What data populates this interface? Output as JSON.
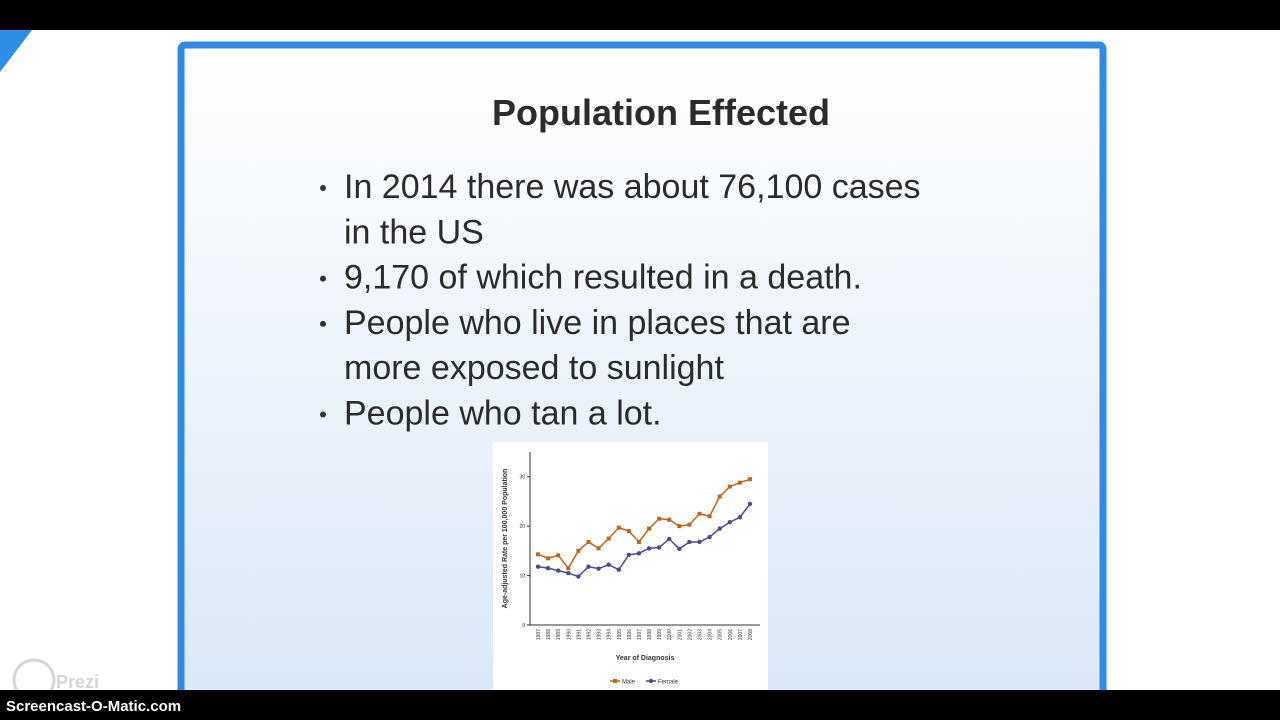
{
  "slide": {
    "title": "Population Effected",
    "bullets": [
      [
        "In 2014 there was about 76,100 cases",
        "in the US"
      ],
      [
        "9,170 of which resulted in a death."
      ],
      [
        "People who live in places that are",
        "more exposed to sunlight"
      ],
      [
        "People who tan a lot."
      ]
    ]
  },
  "chart_data": {
    "type": "line",
    "ylabel": "Age-adjusted Rate per 100,000 Population",
    "xlabel": "Year of Diagnosis",
    "categories": [
      "1987",
      "1988",
      "1989",
      "1990",
      "1991",
      "1992",
      "1993",
      "1994",
      "1995",
      "1996",
      "1997",
      "1998",
      "1999",
      "2000",
      "2001",
      "2002",
      "2003",
      "2004",
      "2005",
      "2006",
      "2007",
      "2008"
    ],
    "series": [
      {
        "name": "Male",
        "color": "#c0661a",
        "marker": "square",
        "values": [
          14.3,
          13.5,
          14.1,
          11.5,
          15,
          16.8,
          15.5,
          17.5,
          19.7,
          19,
          16.8,
          19.5,
          21.5,
          21.3,
          20,
          20.3,
          22.5,
          22,
          26,
          28,
          28.8,
          29.5
        ]
      },
      {
        "name": "Female",
        "color": "#4a4a9a",
        "marker": "circle",
        "values": [
          11.8,
          11.5,
          11,
          10.5,
          9.8,
          11.8,
          11.4,
          12.2,
          11.2,
          14.2,
          14.5,
          15.5,
          15.7,
          17.4,
          15.4,
          16.8,
          16.8,
          17.8,
          19.5,
          20.8,
          21.8,
          24.5
        ]
      }
    ],
    "ylim": [
      0,
      35
    ],
    "yticks": [
      0,
      10,
      20,
      30
    ]
  },
  "logo": "Prezi",
  "footer": "Screencast-O-Matic.com"
}
